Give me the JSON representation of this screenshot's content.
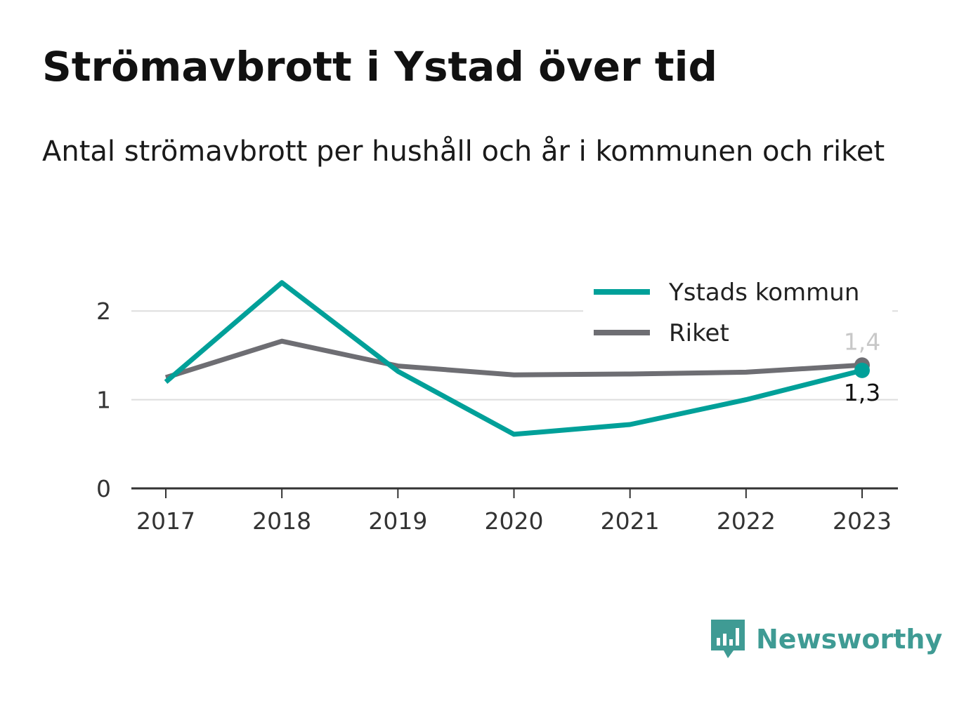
{
  "chart_data": {
    "type": "line",
    "title": "Strömavbrott i Ystad över tid",
    "subtitle": "Antal strömavbrott per hushåll och år i kommunen och riket",
    "x": [
      "2017",
      "2018",
      "2019",
      "2020",
      "2021",
      "2022",
      "2023"
    ],
    "series": [
      {
        "name": "Ystads kommun",
        "color": "#00a099",
        "values": [
          1.2,
          2.32,
          1.32,
          0.61,
          0.72,
          1.0,
          1.33
        ],
        "end_label": "1,3",
        "end_label_color": "#111111"
      },
      {
        "name": "Riket",
        "color": "#6e6e73",
        "values": [
          1.25,
          1.66,
          1.38,
          1.28,
          1.29,
          1.31,
          1.39
        ],
        "end_label": "1,4",
        "end_label_color": "#c8c8c8"
      }
    ],
    "ylim": [
      0,
      2.5
    ],
    "yticks": [
      0,
      1,
      2
    ],
    "grid": true,
    "legend_position": "top-right"
  },
  "brand": {
    "name": "Newsworthy",
    "color": "#3f9b94"
  }
}
